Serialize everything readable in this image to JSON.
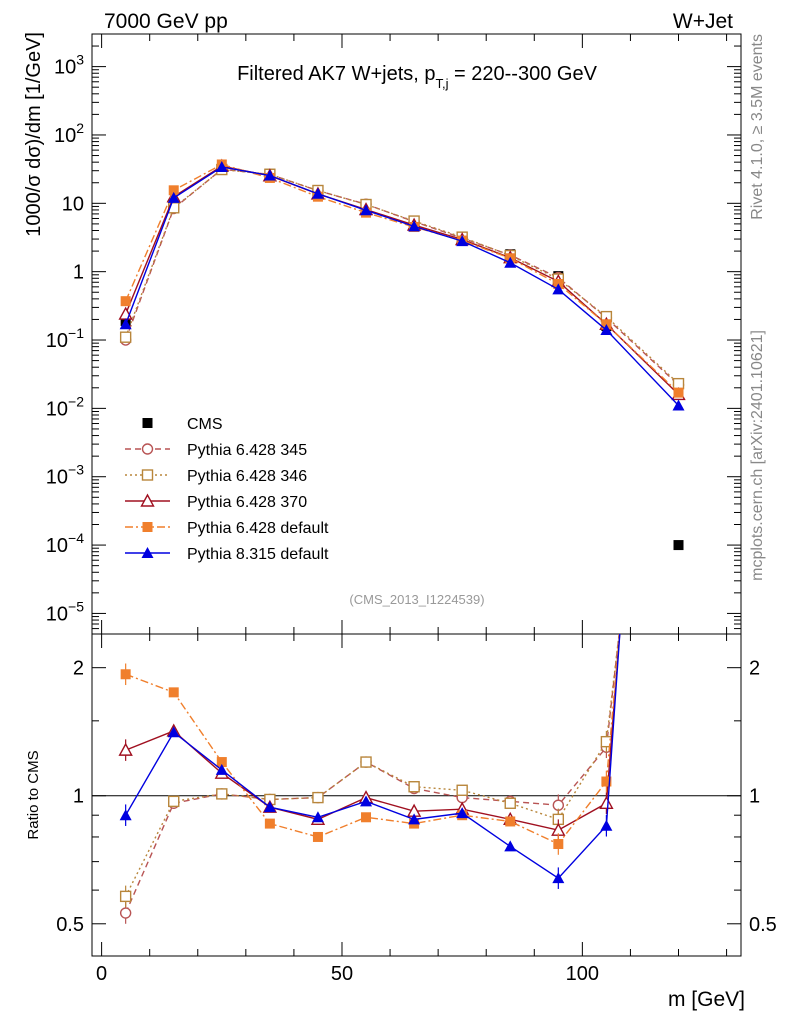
{
  "header": {
    "left": "7000 GeV pp",
    "right": "W+Jet"
  },
  "side_text": {
    "rivet": "Rivet 4.1.0, ≥ 3.5M events",
    "mcplots": "mcplots.cern.ch [arXiv:2401.10621]"
  },
  "chart_data": [
    {
      "type": "line",
      "panel": "main",
      "title": "Filtered AK7 W+jets, p_T,j = 220--300 GeV",
      "title_parts": {
        "prefix": "Filtered AK7 W+jets, p",
        "sub": "T,j",
        "suffix": " = 220--300 GeV"
      },
      "ylabel": "1000/σ  dσ)/dm [1/GeV]",
      "yscale": "log",
      "ylim": [
        5e-06,
        3000
      ],
      "xlim": [
        -2,
        133
      ],
      "x": [
        5,
        15,
        25,
        35,
        45,
        55,
        65,
        75,
        85,
        95,
        105,
        120
      ],
      "y_ticks": [
        {
          "value": 1e-05,
          "mant": "10",
          "exp": "−5"
        },
        {
          "value": 0.0001,
          "mant": "10",
          "exp": "−4"
        },
        {
          "value": 0.001,
          "mant": "10",
          "exp": "−3"
        },
        {
          "value": 0.01,
          "mant": "10",
          "exp": "−2"
        },
        {
          "value": 0.1,
          "mant": "10",
          "exp": "−1"
        },
        {
          "value": 1,
          "mant": "1",
          "exp": ""
        },
        {
          "value": 10,
          "mant": "10",
          "exp": ""
        },
        {
          "value": 100,
          "mant": "10",
          "exp": "2"
        },
        {
          "value": 1000,
          "mant": "10",
          "exp": "3"
        }
      ],
      "watermark": "(CMS_2013_I1224539)",
      "legend_position": "lower-left",
      "series": [
        {
          "name": "CMS",
          "color": "#000000",
          "marker": "square-filled",
          "line": "none",
          "values": [
            0.19,
            8.8,
            31,
            27,
            15.5,
            8.2,
            5.2,
            3.15,
            1.8,
            0.86,
            0.16,
            0.0001
          ],
          "errors": [
            0.02,
            0.4,
            1.2,
            1.0,
            0.6,
            0.3,
            0.2,
            0.12,
            0.08,
            0.05,
            0.02,
            0.0
          ]
        },
        {
          "name": "Pythia 6.428 345",
          "color": "#b85454",
          "marker": "circle-open",
          "line": "dashed",
          "values": [
            0.1,
            8.4,
            31.5,
            26.5,
            15.3,
            9.7,
            5.4,
            3.1,
            1.75,
            0.82,
            0.21,
            0.022
          ]
        },
        {
          "name": "Pythia 6.428 346",
          "color": "#b8863b",
          "marker": "square-open",
          "line": "dotted",
          "values": [
            0.11,
            8.6,
            31.2,
            26.6,
            15.4,
            9.6,
            5.5,
            3.2,
            1.72,
            0.78,
            0.22,
            0.023
          ]
        },
        {
          "name": "Pythia 6.428 370",
          "color": "#a01020",
          "marker": "triangle-open",
          "line": "solid",
          "values": [
            0.24,
            12.5,
            35,
            25.3,
            13.7,
            8.1,
            4.8,
            2.95,
            1.6,
            0.72,
            0.17,
            0.016
          ]
        },
        {
          "name": "Pythia 6.428 default",
          "color": "#f07f2c",
          "marker": "square-filled",
          "line": "dashdot",
          "values": [
            0.37,
            15.5,
            37,
            23.5,
            12.5,
            7.3,
            4.5,
            2.85,
            1.57,
            0.66,
            0.17,
            0.017
          ]
        },
        {
          "name": "Pythia 8.315 default",
          "color": "#0000e0",
          "marker": "triangle-filled",
          "line": "solid",
          "values": [
            0.17,
            12.0,
            34,
            25.5,
            13.8,
            7.9,
            4.6,
            2.8,
            1.35,
            0.55,
            0.14,
            0.011
          ]
        }
      ]
    },
    {
      "type": "line",
      "panel": "ratio",
      "ylabel": "Ratio to CMS",
      "yscale": "log",
      "ylim": [
        0.42,
        2.4
      ],
      "xlim": [
        -2,
        133
      ],
      "xlabel": "m [GeV]",
      "x": [
        5,
        15,
        25,
        35,
        45,
        55,
        65,
        75,
        85,
        95,
        105
      ],
      "x_ticks": [
        0,
        50,
        100
      ],
      "y_ticks": [
        0.5,
        1,
        2
      ],
      "reference_line": 1,
      "series": [
        {
          "name": "Pythia 6.428 345",
          "color": "#b85454",
          "marker": "circle-open",
          "line": "dashed",
          "values": [
            0.53,
            0.96,
            1.01,
            0.98,
            0.99,
            1.2,
            1.04,
            0.99,
            0.97,
            0.95,
            1.3
          ],
          "tail_to": 2.6
        },
        {
          "name": "Pythia 6.428 346",
          "color": "#b8863b",
          "marker": "square-open",
          "line": "dotted",
          "values": [
            0.58,
            0.97,
            1.01,
            0.98,
            0.99,
            1.2,
            1.05,
            1.03,
            0.96,
            0.88,
            1.34
          ],
          "tail_to": 2.6
        },
        {
          "name": "Pythia 6.428 370",
          "color": "#a01020",
          "marker": "triangle-open",
          "line": "solid",
          "values": [
            1.28,
            1.42,
            1.13,
            0.94,
            0.88,
            0.99,
            0.92,
            0.93,
            0.88,
            0.83,
            0.96
          ],
          "tail_to": 2.6
        },
        {
          "name": "Pythia 6.428 default",
          "color": "#f07f2c",
          "marker": "square-filled",
          "line": "dashdot",
          "values": [
            1.93,
            1.75,
            1.2,
            0.86,
            0.8,
            0.89,
            0.86,
            0.9,
            0.87,
            0.77,
            1.08
          ],
          "tail_to": 2.6
        },
        {
          "name": "Pythia 8.315 default",
          "color": "#0000e0",
          "marker": "triangle-filled",
          "line": "solid",
          "values": [
            0.9,
            1.41,
            1.15,
            0.94,
            0.89,
            0.97,
            0.88,
            0.91,
            0.76,
            0.64,
            0.85
          ],
          "tail_to": 2.6
        }
      ]
    }
  ]
}
